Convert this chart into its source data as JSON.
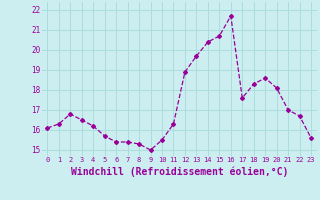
{
  "x": [
    0,
    1,
    2,
    3,
    4,
    5,
    6,
    7,
    8,
    9,
    10,
    11,
    12,
    13,
    14,
    15,
    16,
    17,
    18,
    19,
    20,
    21,
    22,
    23
  ],
  "y": [
    16.1,
    16.3,
    16.8,
    16.5,
    16.2,
    15.7,
    15.4,
    15.4,
    15.3,
    15.0,
    15.5,
    16.3,
    18.9,
    19.7,
    20.4,
    20.7,
    21.7,
    17.6,
    18.3,
    18.6,
    18.1,
    17.0,
    16.7,
    15.6
  ],
  "line_color": "#990099",
  "marker": "D",
  "marker_size": 2,
  "bg_color": "#cceef0",
  "grid_color": "#aadddd",
  "xlabel": "Windchill (Refroidissement éolien,°C)",
  "xlabel_fontsize": 7,
  "yticks": [
    15,
    16,
    17,
    18,
    19,
    20,
    21,
    22
  ],
  "xticks": [
    0,
    1,
    2,
    3,
    4,
    5,
    6,
    7,
    8,
    9,
    10,
    11,
    12,
    13,
    14,
    15,
    16,
    17,
    18,
    19,
    20,
    21,
    22,
    23
  ],
  "ylim": [
    14.7,
    22.4
  ],
  "xlim": [
    -0.5,
    23.5
  ]
}
